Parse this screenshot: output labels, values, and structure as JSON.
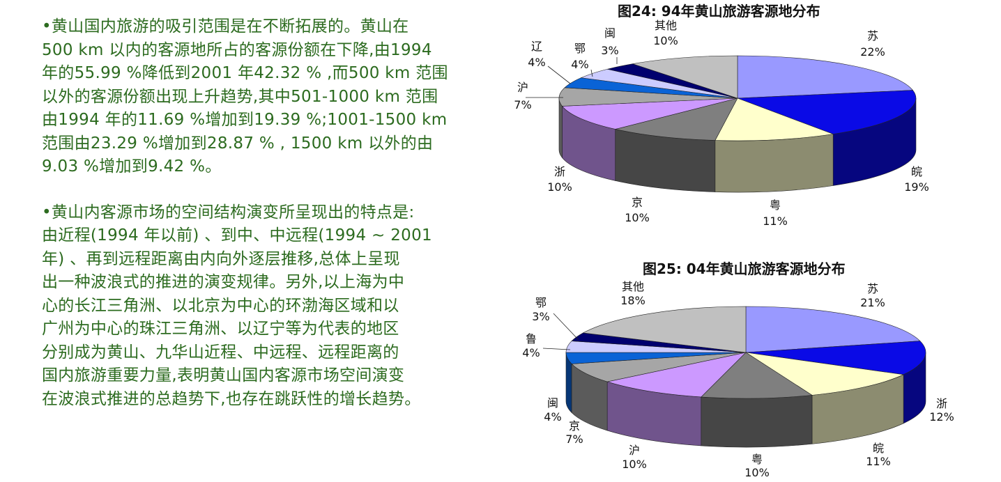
{
  "text": {
    "p1": "•黄山国内旅游的吸引范围是在不断拓展的。黄山在\n500 km 以内的客源地所占的客源份额在下降,由1994\n年的55.99 %降低到2001 年42.32 % ,而500 km 范围\n以外的客源份额出现上升趋势,其中501-1000 km 范围\n由1994 年的11.69 %增加到19.39 %;1001-1500 km\n范围由23.29 %增加到28.87 % , 1500 km 以外的由\n9.03 %增加到9.42 %。",
    "p2": "•黄山内客源市场的空间结构演变所呈现出的特点是:\n由近程(1994 年以前) 、到中、中远程(1994 ~ 2001\n年) 、再到远程距离由内向外逐层推移,总体上呈现\n出一种波浪式的推进的演变规律。另外,以上海为中\n心的长江三角洲、以北京为中心的环渤海区域和以\n广州为中心的珠江三角洲、以辽宁等为代表的地区\n分别成为黄山、九华山近程、中远程、远程距离的\n国内旅游重要力量,表明黄山国内客源市场空间演变\n在波浪式推进的总趋势下,也存在跳跃性的增长趋势。",
    "color": "#2c6b1f"
  },
  "chart_data": [
    {
      "type": "pie",
      "style": "3d",
      "title": "图24:  94年黄山旅游客源地分布",
      "categories": [
        "苏",
        "皖",
        "粤",
        "京",
        "浙",
        "沪",
        "辽",
        "鄂",
        "闽",
        "其他"
      ],
      "values": [
        22,
        19,
        11,
        10,
        10,
        7,
        4,
        4,
        3,
        10
      ],
      "labels": [
        "22%",
        "19%",
        "11%",
        "10%",
        "10%",
        "7%",
        "4%",
        "4%",
        "3%",
        "10%"
      ],
      "colors": [
        "#9999ff",
        "#0a0ae6",
        "#ffffcc",
        "#7f7f7f",
        "#cc99ff",
        "#a6a6a6",
        "#0a63d6",
        "#ccccff",
        "#00006e",
        "#c0c0c0"
      ],
      "legend": "none"
    },
    {
      "type": "pie",
      "style": "3d",
      "title": "图25:  04年黄山旅游客源地分布",
      "categories": [
        "苏",
        "浙",
        "皖",
        "粤",
        "沪",
        "京",
        "闽",
        "鲁",
        "鄂",
        "其他"
      ],
      "values": [
        21,
        12,
        11,
        10,
        10,
        7,
        4,
        4,
        3,
        18
      ],
      "labels": [
        "21%",
        "12%",
        "11%",
        "10%",
        "10%",
        "7%",
        "4%",
        "4%",
        "3%",
        "18%"
      ],
      "colors": [
        "#9999ff",
        "#0a0ae6",
        "#ffffcc",
        "#7f7f7f",
        "#cc99ff",
        "#a6a6a6",
        "#0a63d6",
        "#ccccff",
        "#00006e",
        "#c0c0c0"
      ],
      "legend": "none"
    }
  ]
}
